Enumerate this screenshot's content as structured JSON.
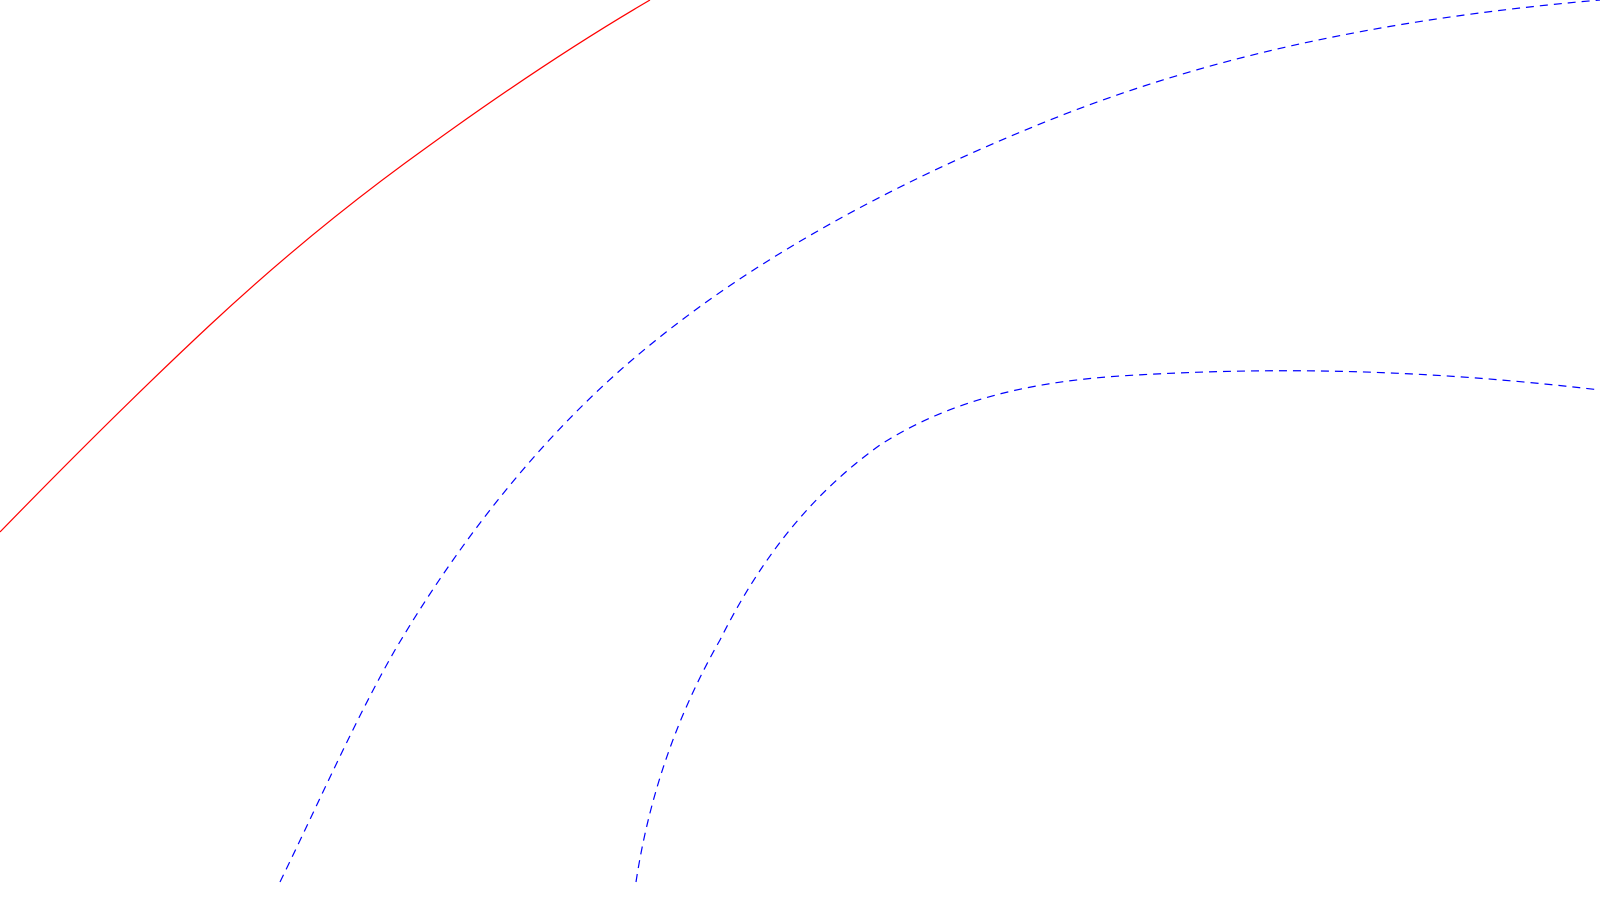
{
  "diagram": {
    "background_color": "#ffffff",
    "curves": [
      {
        "id": "red-solid-curve",
        "stroke": "#ff0000",
        "style": "solid"
      },
      {
        "id": "blue-dashed-curve-outer",
        "stroke": "#0000ff",
        "style": "dashed"
      },
      {
        "id": "blue-dashed-curve-inner",
        "stroke": "#0000ff",
        "style": "dashed"
      }
    ]
  }
}
